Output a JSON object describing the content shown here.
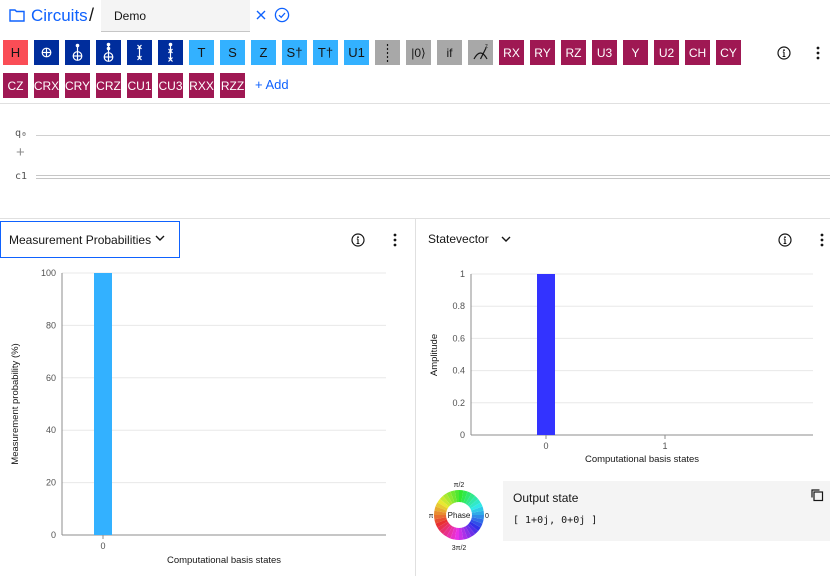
{
  "header": {
    "breadcrumb_root": "Circuits",
    "breadcrumb_separator": "/",
    "circuit_name": "Demo"
  },
  "palette": {
    "row1": [
      {
        "label": "H",
        "kind": "h"
      },
      {
        "label": "cnot-icon",
        "kind": "navy",
        "icon": "cnot"
      },
      {
        "label": "toffoli-icon",
        "kind": "navy",
        "icon": "toffoli"
      },
      {
        "label": "ccx-icon",
        "kind": "navy",
        "icon": "ccx"
      },
      {
        "label": "swap-icon",
        "kind": "navy",
        "icon": "swap"
      },
      {
        "label": "cswap-icon",
        "kind": "navy",
        "icon": "cswap"
      },
      {
        "label": "T",
        "kind": "light"
      },
      {
        "label": "S",
        "kind": "light"
      },
      {
        "label": "Z",
        "kind": "light"
      },
      {
        "label": "S†",
        "kind": "light"
      },
      {
        "label": "T†",
        "kind": "light"
      },
      {
        "label": "U1",
        "kind": "light"
      },
      {
        "label": "barrier-icon",
        "kind": "gray",
        "icon": "barrier"
      },
      {
        "label": "|0⟩",
        "kind": "gray"
      },
      {
        "label": "if",
        "kind": "gray"
      },
      {
        "label": "measure-icon",
        "kind": "gray",
        "icon": "measure"
      },
      {
        "label": "RX",
        "kind": "rot"
      },
      {
        "label": "RY",
        "kind": "rot"
      },
      {
        "label": "RZ",
        "kind": "rot"
      },
      {
        "label": "U3",
        "kind": "rot"
      },
      {
        "label": "Y",
        "kind": "rot"
      },
      {
        "label": "U2",
        "kind": "rot"
      },
      {
        "label": "CH",
        "kind": "rot"
      },
      {
        "label": "CY",
        "kind": "rot"
      }
    ],
    "row2": [
      {
        "label": "CZ",
        "kind": "rot"
      },
      {
        "label": "CRX",
        "kind": "rot"
      },
      {
        "label": "CRY",
        "kind": "rot"
      },
      {
        "label": "CRZ",
        "kind": "rot"
      },
      {
        "label": "CU1",
        "kind": "rot"
      },
      {
        "label": "CU3",
        "kind": "rot"
      },
      {
        "label": "RXX",
        "kind": "rot"
      },
      {
        "label": "RZZ",
        "kind": "rot"
      }
    ],
    "add_label": "+ Add"
  },
  "circuit": {
    "qubit_label": "q₀",
    "classical_label": "c1",
    "add_symbol": "+"
  },
  "left_panel": {
    "title": "Measurement Probabilities"
  },
  "right_panel": {
    "title": "Statevector",
    "phase_wheel": {
      "center": "Phase",
      "top": "π/2",
      "left": "π",
      "right": "0",
      "bottom": "3π/2"
    },
    "output": {
      "title": "Output state",
      "value": "[ 1+0j, 0+0j ]"
    }
  },
  "chart_data": [
    {
      "type": "bar",
      "title": "",
      "xlabel": "Computational basis states",
      "ylabel": "Measurement probability (%)",
      "categories": [
        "0"
      ],
      "values": [
        100
      ],
      "ylim": [
        0,
        100
      ],
      "yticks": [
        "0",
        "20",
        "40",
        "60",
        "80",
        "100"
      ],
      "grid": true,
      "color": "#33b1ff"
    },
    {
      "type": "bar",
      "title": "",
      "xlabel": "Computational basis states",
      "ylabel": "Amplitude",
      "categories": [
        "0",
        "1"
      ],
      "values": [
        1,
        0
      ],
      "ylim": [
        0,
        1
      ],
      "yticks": [
        "0",
        "0.2",
        "0.4",
        "0.6",
        "0.8",
        "1"
      ],
      "grid": true,
      "color": "#3333ff"
    }
  ]
}
